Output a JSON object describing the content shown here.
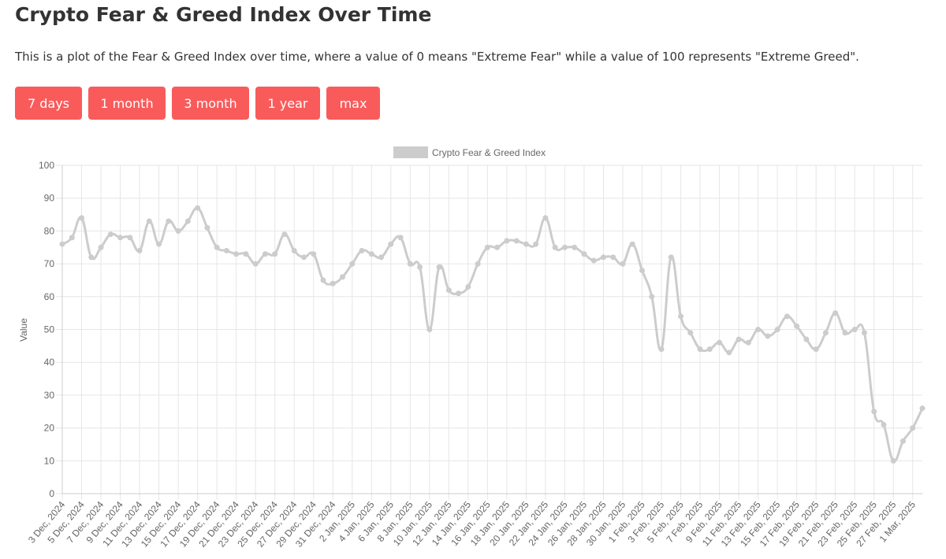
{
  "page": {
    "title": "Crypto Fear & Greed Index Over Time",
    "description": "This is a plot of the Fear & Greed Index over time, where a value of 0 means \"Extreme Fear\" while a value of 100 represents \"Extreme Greed\"."
  },
  "range_buttons": [
    {
      "label": "7 days"
    },
    {
      "label": "1 month"
    },
    {
      "label": "3 month"
    },
    {
      "label": "1 year"
    },
    {
      "label": "max"
    }
  ],
  "colors": {
    "button_bg": "#f95b5b",
    "button_text": "#ffffff",
    "series_line": "#cccccc",
    "grid": "#e6e6e6",
    "axis_text": "#666666"
  },
  "chart_data": {
    "type": "line",
    "title": "",
    "xlabel": "",
    "ylabel": "Value",
    "ylim": [
      0,
      100
    ],
    "yticks": [
      0,
      10,
      20,
      30,
      40,
      50,
      60,
      70,
      80,
      90,
      100
    ],
    "grid": true,
    "legend": "top-center",
    "x_tick_labels": [
      "3 Dec, 2024",
      "5 Dec, 2024",
      "7 Dec, 2024",
      "9 Dec, 2024",
      "11 Dec, 2024",
      "13 Dec, 2024",
      "15 Dec, 2024",
      "17 Dec, 2024",
      "19 Dec, 2024",
      "21 Dec, 2024",
      "23 Dec, 2024",
      "25 Dec, 2024",
      "27 Dec, 2024",
      "29 Dec, 2024",
      "31 Dec, 2024",
      "2 Jan, 2025",
      "4 Jan, 2025",
      "6 Jan, 2025",
      "8 Jan, 2025",
      "10 Jan, 2025",
      "12 Jan, 2025",
      "14 Jan, 2025",
      "16 Jan, 2025",
      "18 Jan, 2025",
      "20 Jan, 2025",
      "22 Jan, 2025",
      "24 Jan, 2025",
      "26 Jan, 2025",
      "28 Jan, 2025",
      "30 Jan, 2025",
      "1 Feb, 2025",
      "3 Feb, 2025",
      "5 Feb, 2025",
      "7 Feb, 2025",
      "9 Feb, 2025",
      "11 Feb, 2025",
      "13 Feb, 2025",
      "15 Feb, 2025",
      "17 Feb, 2025",
      "19 Feb, 2025",
      "21 Feb, 2025",
      "23 Feb, 2025",
      "25 Feb, 2025",
      "27 Feb, 2025",
      "1 Mar, 2025"
    ],
    "series": [
      {
        "name": "Crypto Fear & Greed Index",
        "values": [
          76,
          78,
          84,
          72,
          75,
          79,
          78,
          78,
          74,
          83,
          76,
          83,
          80,
          83,
          87,
          81,
          75,
          74,
          73,
          73,
          70,
          73,
          73,
          79,
          74,
          72,
          73,
          65,
          64,
          66,
          70,
          74,
          73,
          72,
          76,
          78,
          70,
          69,
          50,
          69,
          62,
          61,
          63,
          70,
          75,
          75,
          77,
          77,
          76,
          76,
          84,
          75,
          75,
          75,
          73,
          71,
          72,
          72,
          70,
          76,
          68,
          60,
          44,
          72,
          54,
          49,
          44,
          44,
          46,
          43,
          47,
          46,
          50,
          48,
          50,
          54,
          51,
          47,
          44,
          49,
          55,
          49,
          50,
          49,
          25,
          21,
          10,
          16,
          20,
          26
        ]
      }
    ]
  }
}
